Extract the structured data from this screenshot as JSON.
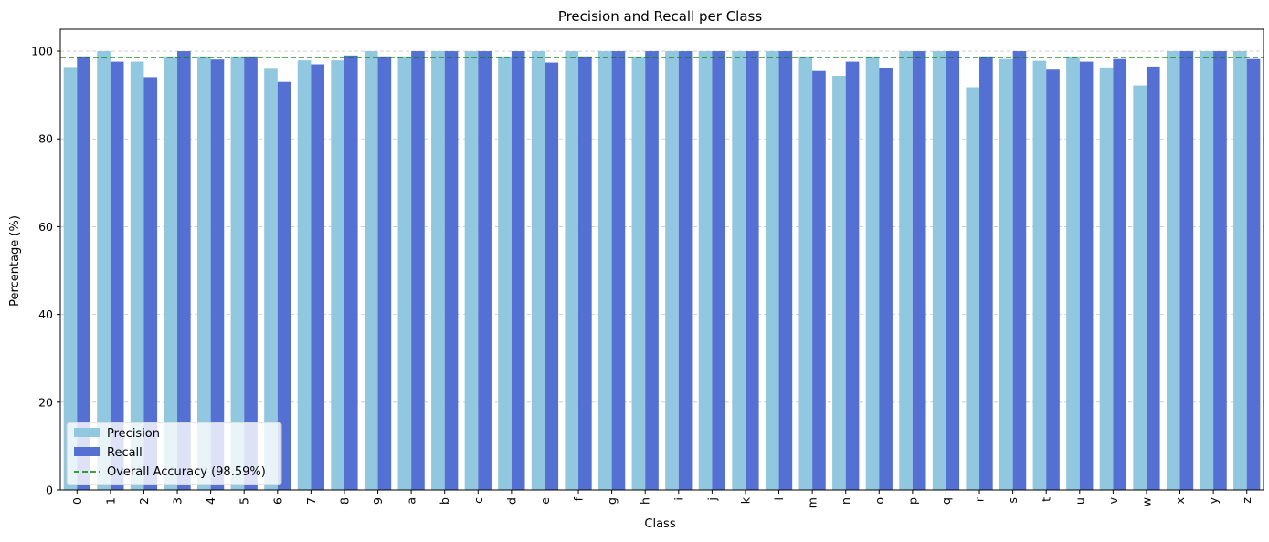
{
  "chart_data": {
    "type": "bar",
    "title": "Precision and Recall per Class",
    "xlabel": "Class",
    "ylabel": "Percentage (%)",
    "ylim": [
      0,
      105
    ],
    "yticks": [
      0,
      20,
      40,
      60,
      80,
      100
    ],
    "grid": "y-dashed",
    "legend_position": "lower-left",
    "categories": [
      "0",
      "1",
      "2",
      "3",
      "4",
      "5",
      "6",
      "7",
      "8",
      "9",
      "a",
      "b",
      "c",
      "d",
      "e",
      "f",
      "g",
      "h",
      "i",
      "j",
      "k",
      "l",
      "m",
      "n",
      "o",
      "p",
      "q",
      "r",
      "s",
      "t",
      "u",
      "v",
      "w",
      "x",
      "y",
      "z"
    ],
    "series": [
      {
        "name": "Precision",
        "color": "#92c7e0",
        "values": [
          96.4,
          100,
          97.6,
          98.8,
          98.8,
          98.8,
          96,
          97.9,
          97.9,
          100,
          98.8,
          100,
          100,
          98.8,
          100,
          100,
          100,
          98.8,
          100,
          100,
          100,
          100,
          98.8,
          94.4,
          98.8,
          100,
          100,
          91.8,
          98.2,
          97.8,
          98.8,
          96.3,
          92.2,
          100,
          100,
          100
        ]
      },
      {
        "name": "Recall",
        "color": "#5470d2",
        "values": [
          98.8,
          97.6,
          94.1,
          100,
          98.1,
          98.8,
          93,
          97,
          99,
          98.8,
          100,
          100,
          100,
          100,
          97.4,
          98.8,
          100,
          100,
          100,
          100,
          100,
          100,
          95.5,
          97.6,
          96.1,
          100,
          100,
          98.8,
          100,
          95.8,
          97.6,
          98.2,
          96.5,
          100,
          100,
          98.2
        ]
      }
    ],
    "reference_line": {
      "label": "Overall Accuracy (98.59%)",
      "value": 98.59,
      "color": "#008000",
      "style": "dashed"
    }
  }
}
